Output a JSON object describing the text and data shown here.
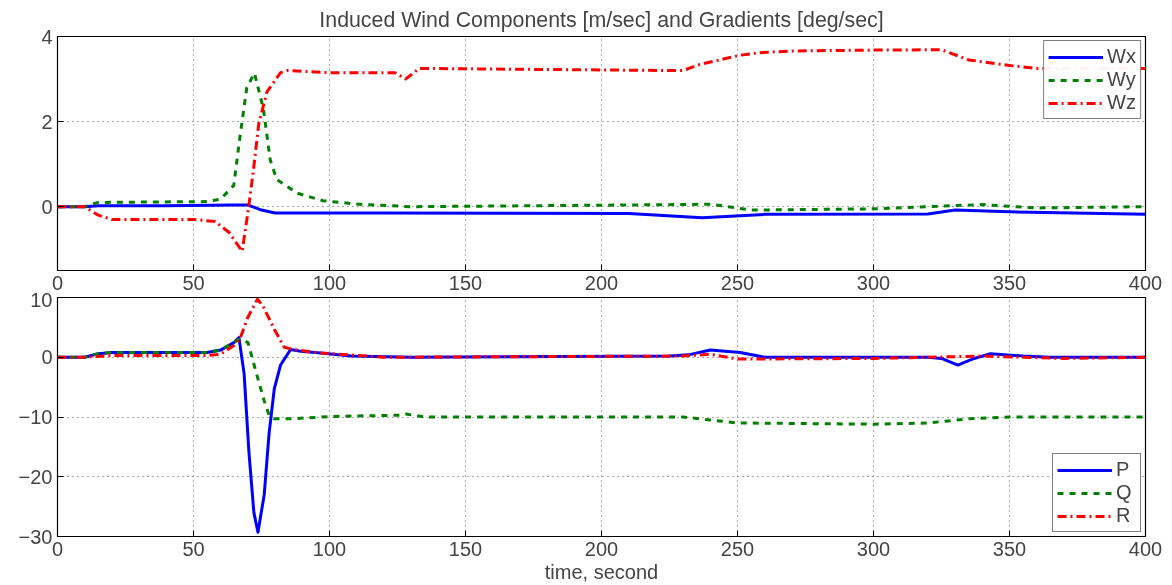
{
  "chart_data": [
    {
      "type": "line",
      "title": "Induced Wind Components [m/sec] and Gradients [deg/sec]",
      "xlim": [
        0,
        400
      ],
      "xticks": [
        0,
        50,
        100,
        150,
        200,
        250,
        300,
        350,
        400
      ],
      "ylim": [
        -1.5,
        4
      ],
      "yticks": [
        0,
        2,
        4
      ],
      "grid": true,
      "legend": "top right",
      "marker": "none",
      "series": [
        {
          "name": "Wx",
          "color": "#0000ff",
          "line_style": "solid",
          "x": [
            0,
            10,
            15,
            40,
            65,
            70,
            75,
            80,
            120,
            210,
            237,
            260,
            320,
            330,
            350,
            400
          ],
          "values": [
            0,
            0,
            0.02,
            0.02,
            0.04,
            0.04,
            -0.08,
            -0.15,
            -0.15,
            -0.16,
            -0.26,
            -0.18,
            -0.17,
            -0.08,
            -0.12,
            -0.18
          ]
        },
        {
          "name": "Wy",
          "color": "#008000",
          "line_style": "dashed",
          "x": [
            0,
            10,
            15,
            55,
            60,
            64.8,
            67.2,
            69.6,
            72.4,
            75.7,
            78.2,
            80.6,
            88,
            97.6,
            112,
            130,
            230,
            240,
            255,
            300,
            320,
            340,
            360,
            400
          ],
          "values": [
            0,
            0,
            0.1,
            0.12,
            0.18,
            0.5,
            1.7,
            2.8,
            3.14,
            2.3,
            1.1,
            0.64,
            0.32,
            0.14,
            0.05,
            0.0,
            0.05,
            0.06,
            -0.08,
            -0.05,
            0,
            0.05,
            -0.03,
            0.0
          ]
        },
        {
          "name": "Wz",
          "color": "#ff0000",
          "line_style": "dashed",
          "x": [
            0,
            10,
            15,
            20,
            50,
            58,
            63,
            67.9,
            70.3,
            72.2,
            74,
            77,
            82,
            84.5,
            100,
            124,
            128,
            133,
            225,
            230,
            236,
            251,
            258,
            270,
            300,
            325,
            335,
            350,
            360,
            400
          ],
          "values": [
            0,
            0,
            -0.2,
            -0.3,
            -0.3,
            -0.35,
            -0.6,
            -1.05,
            0,
            0.95,
            1.95,
            2.7,
            3.15,
            3.2,
            3.15,
            3.15,
            3.0,
            3.25,
            3.2,
            3.2,
            3.34,
            3.56,
            3.62,
            3.66,
            3.68,
            3.69,
            3.45,
            3.32,
            3.25,
            3.25
          ]
        }
      ]
    },
    {
      "type": "line",
      "xlabel": "time, second",
      "xlim": [
        0,
        400
      ],
      "xticks": [
        0,
        50,
        100,
        150,
        200,
        250,
        300,
        350,
        400
      ],
      "ylim": [
        -30,
        10
      ],
      "yticks": [
        -30,
        -20,
        -10,
        0,
        10
      ],
      "grid": true,
      "legend": "bottom right",
      "marker": "none",
      "series": [
        {
          "name": "P",
          "color": "#0000ff",
          "line_style": "solid",
          "x": [
            0,
            10,
            15,
            20,
            55,
            60,
            65,
            66.7,
            68.6,
            70.4,
            72.2,
            73.7,
            76,
            77.8,
            79.7,
            82,
            85.7,
            89.4,
            96.8,
            108,
            130,
            225,
            232,
            240,
            251,
            260,
            320,
            325,
            331,
            337,
            343,
            355,
            365,
            400
          ],
          "values": [
            0,
            0,
            0.6,
            0.8,
            0.8,
            1.2,
            2.5,
            3.3,
            -2.7,
            -16,
            -26,
            -29.3,
            -23,
            -12.7,
            -5.3,
            -1.3,
            1.3,
            1.0,
            0.7,
            0.2,
            0,
            0.2,
            0.4,
            1.2,
            0.8,
            0,
            0,
            -0.2,
            -1.3,
            -0.2,
            0.6,
            0.2,
            0,
            0
          ]
        },
        {
          "name": "Q",
          "color": "#008000",
          "line_style": "dashed",
          "x": [
            0,
            10,
            15,
            20,
            55,
            60,
            65,
            66.7,
            70,
            73.5,
            76,
            77.8,
            79.7,
            85.7,
            101.7,
            126,
            128,
            135,
            230,
            240,
            250,
            300,
            320,
            335,
            350,
            400
          ],
          "values": [
            0,
            0,
            0.6,
            0.8,
            0.8,
            1.2,
            2.5,
            3.0,
            2.5,
            -3.3,
            -7.3,
            -9.7,
            -10.3,
            -10.3,
            -9.9,
            -9.7,
            -9.5,
            -10,
            -10,
            -10.5,
            -11,
            -11.2,
            -11,
            -10.3,
            -10,
            -10
          ]
        },
        {
          "name": "R",
          "color": "#ff0000",
          "line_style": "dashed",
          "x": [
            0,
            10,
            20,
            55,
            60,
            65,
            67,
            70,
            73.5,
            75.4,
            79.7,
            83.3,
            86.4,
            97,
            120,
            230,
            240,
            250,
            300,
            340,
            370,
            400
          ],
          "values": [
            0,
            0,
            0.3,
            0.3,
            0.5,
            2,
            3,
            6.7,
            9.7,
            8.7,
            4.7,
            1.7,
            1.3,
            0.7,
            0,
            0.2,
            0.5,
            -0.3,
            -0.2,
            0.2,
            -0.2,
            0
          ]
        }
      ]
    }
  ]
}
